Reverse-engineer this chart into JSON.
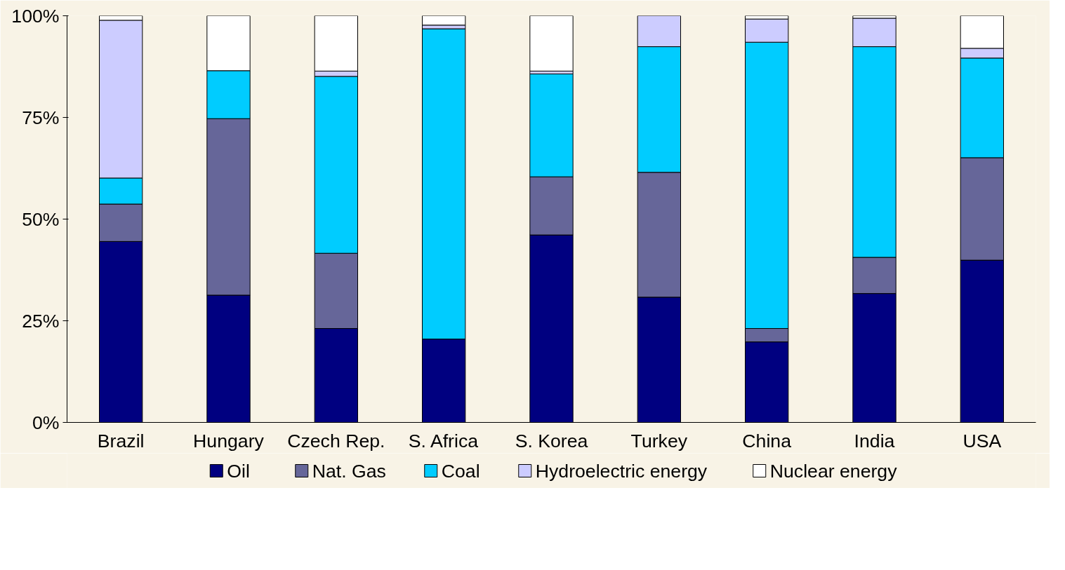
{
  "chart_data": {
    "type": "bar",
    "stacked": true,
    "categories": [
      "Brazil",
      "Hungary",
      "Czech Rep.",
      "S. Africa",
      "S. Korea",
      "Turkey",
      "China",
      "India",
      "USA"
    ],
    "series": [
      {
        "name": "Oil",
        "color": "#000080",
        "values": [
          44.5,
          31.3,
          23.1,
          20.5,
          46.1,
          30.8,
          19.8,
          31.7,
          39.9
        ]
      },
      {
        "name": "Nat. Gas",
        "color": "#666699",
        "values": [
          9.2,
          43.4,
          18.5,
          null,
          14.3,
          30.7,
          3.3,
          8.9,
          25.2
        ]
      },
      {
        "name": "Coal",
        "color": "#00ccff",
        "values": [
          6.4,
          11.8,
          43.5,
          76.3,
          25.3,
          30.9,
          70.4,
          51.8,
          24.5
        ]
      },
      {
        "name": "Hydroelectric energy",
        "color": "#ccccff",
        "values": [
          38.8,
          null,
          1.3,
          0.9,
          0.7,
          7.6,
          5.7,
          7.0,
          2.4
        ]
      },
      {
        "name": "Nuclear energy",
        "color": "#ffffff",
        "values": [
          1.1,
          13.5,
          13.6,
          2.3,
          13.6,
          null,
          0.8,
          0.6,
          8.0
        ]
      }
    ],
    "ylim": [
      0,
      100
    ],
    "yticks": [
      {
        "value": 0,
        "label": "0%"
      },
      {
        "value": 25,
        "label": "25%"
      },
      {
        "value": 50,
        "label": "50%"
      },
      {
        "value": 75,
        "label": "75%"
      },
      {
        "value": 100,
        "label": "100%"
      }
    ],
    "grid": false,
    "legend": "bottom"
  }
}
